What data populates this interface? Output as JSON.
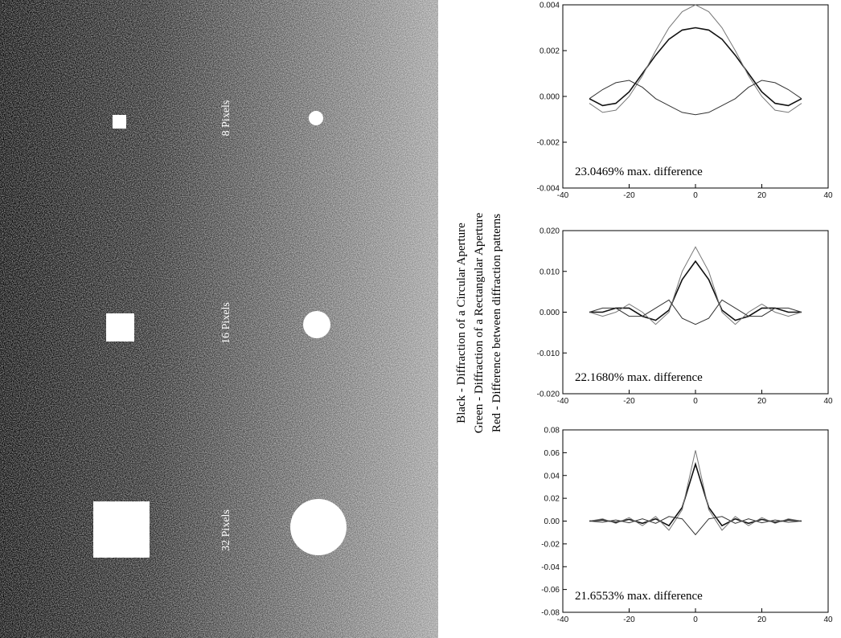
{
  "figure": {
    "labels": [
      "8 Pixels",
      "16 Pixels",
      "32 Pixels"
    ],
    "legend": [
      "Black - Diffraction of a Circular Aperture",
      "Green - Diffraction of a Rectangular Aperture",
      "Red - Difference between diffraction patterns"
    ]
  },
  "chart_data": [
    {
      "type": "line",
      "annotation": "23.0469% max. difference",
      "x": [
        -32,
        -28,
        -24,
        -20,
        -16,
        -12,
        -8,
        -4,
        0,
        4,
        8,
        12,
        16,
        20,
        24,
        28,
        32
      ],
      "xlim": [
        -40,
        40
      ],
      "xticks": [
        -40,
        -20,
        0,
        20,
        40
      ],
      "ylim": [
        -0.004,
        0.004
      ],
      "yticks": [
        -0.004,
        -0.002,
        {
          "value": 0,
          "label": "0.000"
        },
        0.002,
        0.004
      ],
      "series": [
        {
          "color": "#111111",
          "values": [
            -0.0001,
            -0.0004,
            -0.0003,
            0.0002,
            0.001,
            0.0018,
            0.0025,
            0.0029,
            0.003,
            0.0029,
            0.0025,
            0.0018,
            0.001,
            0.0002,
            -0.0003,
            -0.0004,
            -0.0001
          ]
        },
        {
          "color": "#777777",
          "values": [
            -0.0003,
            -0.0007,
            -0.0006,
            0,
            0.0009,
            0.002,
            0.003,
            0.0037,
            0.004,
            0.0037,
            0.003,
            0.002,
            0.0009,
            0,
            -0.0006,
            -0.0007,
            -0.0003
          ]
        },
        {
          "color": "#333333",
          "values": [
            -0.0001,
            0.0003,
            0.0006,
            0.0007,
            0.0004,
            -0.0001,
            -0.0004,
            -0.0007,
            -0.0008,
            -0.0007,
            -0.0004,
            -0.0001,
            0.0004,
            0.0007,
            0.0006,
            0.0003,
            -0.0001
          ]
        }
      ]
    },
    {
      "type": "line",
      "annotation": "22.1680% max. difference",
      "x": [
        -32,
        -28,
        -24,
        -20,
        -16,
        -12,
        -8,
        -4,
        0,
        4,
        8,
        12,
        16,
        20,
        24,
        28,
        32
      ],
      "xlim": [
        -40,
        40
      ],
      "xticks": [
        -40,
        -20,
        0,
        20,
        40
      ],
      "ylim": [
        -0.02,
        0.02
      ],
      "yticks": [
        {
          "value": -0.02,
          "label": "-0.020"
        },
        {
          "value": -0.01,
          "label": "-0.010"
        },
        {
          "value": 0,
          "label": "0.000"
        },
        {
          "value": 0.01,
          "label": "0.010"
        },
        {
          "value": 0.02,
          "label": "0.020"
        }
      ],
      "series": [
        {
          "color": "#111111",
          "values": [
            0,
            0,
            0.001,
            0.001,
            -0.001,
            -0.002,
            0.0005,
            0.008,
            0.0125,
            0.008,
            0.0005,
            -0.002,
            -0.001,
            0.001,
            0.001,
            0,
            0
          ]
        },
        {
          "color": "#777777",
          "values": [
            0,
            -0.001,
            0,
            0.002,
            0,
            -0.003,
            0,
            0.01,
            0.016,
            0.01,
            0,
            -0.003,
            0,
            0.002,
            0,
            -0.001,
            0
          ]
        },
        {
          "color": "#333333",
          "values": [
            0,
            0.001,
            0.001,
            -0.001,
            -0.001,
            0.001,
            0.003,
            -0.0015,
            -0.003,
            -0.0015,
            0.003,
            0.001,
            -0.001,
            -0.001,
            0.001,
            0.001,
            0
          ]
        }
      ]
    },
    {
      "type": "line",
      "annotation": "21.6553% max. difference",
      "x": [
        -32,
        -28,
        -24,
        -20,
        -16,
        -12,
        -8,
        -4,
        0,
        4,
        8,
        12,
        16,
        20,
        24,
        28,
        32
      ],
      "xlim": [
        -40,
        40
      ],
      "xticks": [
        -40,
        -20,
        0,
        20,
        40
      ],
      "ylim": [
        -0.08,
        0.08
      ],
      "yticks": [
        -0.08,
        -0.06,
        -0.04,
        -0.02,
        {
          "value": 0,
          "label": "0.00"
        },
        0.02,
        0.04,
        0.06,
        0.08
      ],
      "series": [
        {
          "color": "#111111",
          "values": [
            0,
            0.001,
            -0.001,
            0.0015,
            -0.002,
            0.002,
            -0.004,
            0.012,
            0.05,
            0.012,
            -0.004,
            0.002,
            -0.002,
            0.0015,
            -0.001,
            0.001,
            0
          ]
        },
        {
          "color": "#777777",
          "values": [
            0,
            0.002,
            -0.002,
            0.003,
            -0.004,
            0.004,
            -0.008,
            0.01,
            0.062,
            0.01,
            -0.008,
            0.004,
            -0.004,
            0.003,
            -0.002,
            0.002,
            0
          ]
        },
        {
          "color": "#333333",
          "values": [
            0,
            -0.001,
            0.001,
            -0.0015,
            0.002,
            -0.002,
            0.004,
            0.002,
            -0.012,
            0.002,
            0.004,
            -0.002,
            0.002,
            -0.0015,
            0.001,
            -0.001,
            0
          ]
        }
      ]
    }
  ]
}
